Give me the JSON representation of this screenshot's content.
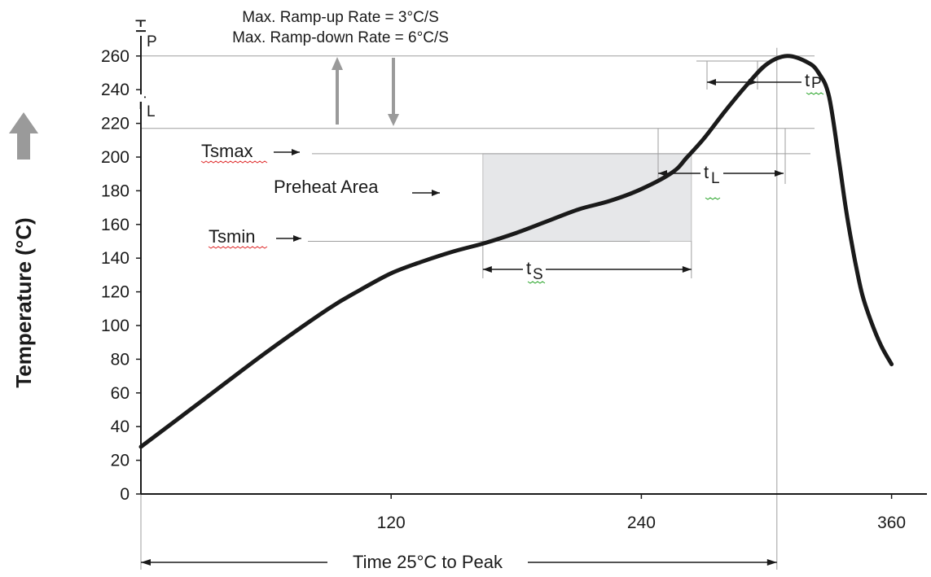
{
  "chart_data": {
    "type": "line",
    "title": "",
    "xlabel": "Time 25°C to Peak",
    "ylabel": "Temperature (°C)",
    "xlim": [
      0,
      385
    ],
    "ylim": [
      0,
      270
    ],
    "x_ticks": [
      120,
      240,
      360
    ],
    "y_ticks": [
      0,
      20,
      40,
      60,
      80,
      100,
      120,
      140,
      160,
      180,
      200,
      220,
      240,
      260
    ],
    "grid": false,
    "series": [
      {
        "x": [
          0,
          30,
          60,
          90,
          105,
          120,
          135,
          150,
          165,
          180,
          195,
          210,
          225,
          240,
          255,
          262,
          270,
          280,
          290,
          300,
          310,
          320,
          325,
          330,
          335,
          338,
          341,
          343,
          346,
          350,
          355,
          360
        ],
        "y": [
          28,
          56,
          84,
          110,
          121,
          131,
          138,
          144,
          149,
          155,
          162,
          169,
          174,
          181,
          191,
          200,
          211,
          227,
          242,
          255,
          260,
          256,
          250,
          236,
          196,
          170,
          148,
          135,
          118,
          103,
          88,
          77
        ]
      }
    ],
    "reference_lines": {
      "peak_temp": 260,
      "liquidus_temp": 217,
      "ts_max": 202,
      "ts_min": 150,
      "time_to_peak": 305
    },
    "preheat_area": {
      "x": [
        164,
        264
      ],
      "y": [
        150,
        202
      ]
    },
    "annotations": {
      "ramp_up": "Max. Ramp-up Rate = 3°C/S",
      "ramp_down": "Max. Ramp-down Rate = 6°C/S",
      "tp_label_main": "T",
      "tp_label_sub": "P",
      "tl_label_main": "T",
      "tl_label_sub": "L",
      "tsmax": "Tsmax",
      "tsmin": "Tsmin",
      "preheat": "Preheat Area",
      "ts_main": "t",
      "ts_sub": "S",
      "tl_time_main": "t",
      "tl_time_sub": "L",
      "tp_time_main": "t",
      "tp_time_sub": "P"
    },
    "colors": {
      "curve": "#1a1a1a",
      "preheat_fill": "#e6e7e9",
      "arrow": "#9a9a9a",
      "guide": "#9e9e9e"
    }
  }
}
